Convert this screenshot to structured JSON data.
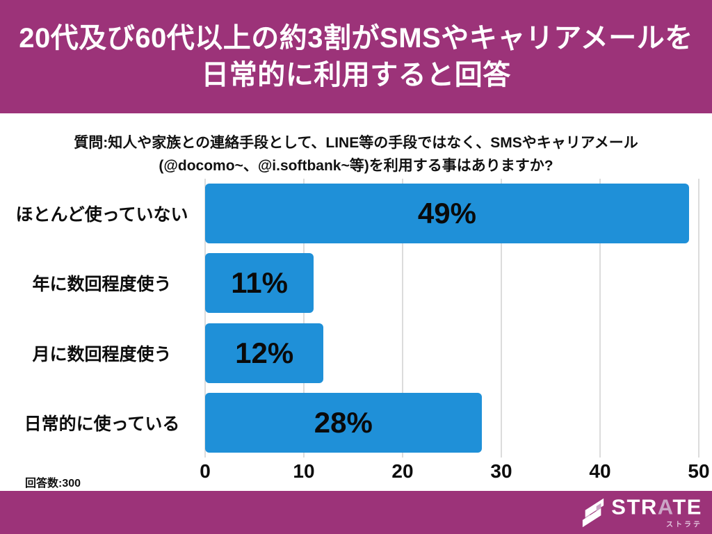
{
  "colors": {
    "magenta": "#9c3379",
    "bar_blue": "#1f90d8",
    "grid": "#dcdcdc",
    "lavender": "#cba6c6"
  },
  "header": {
    "line1": "20代及び60代以上の約3割がSMSやキャリアメールを",
    "line2": "日常的に利用すると回答"
  },
  "question": {
    "line1": "質問:知人や家族との連絡手段として、LINE等の手段ではなく、SMSやキャリアメール",
    "line2": "(@docomo~、@i.softbank~等)を利用する事はありますか?"
  },
  "chart_data": {
    "type": "bar",
    "orientation": "horizontal",
    "categories": [
      "ほとんど使っていない",
      "年に数回程度使う",
      "月に数回程度使う",
      "日常的に使っている"
    ],
    "values": [
      49,
      11,
      12,
      28
    ],
    "value_labels": [
      "49%",
      "11%",
      "12%",
      "28%"
    ],
    "x_ticks": [
      "0",
      "10",
      "20",
      "30",
      "40",
      "50"
    ],
    "xlim": [
      0,
      50
    ],
    "grid": true,
    "legend": "none",
    "bar_color": "#1f90d8"
  },
  "footnote": {
    "respondents": "回答数:300"
  },
  "footer": {
    "logo": {
      "icon": "strate-s-icon",
      "text_pre": "STR",
      "text_mid": "A",
      "text_post": "TE",
      "subtext": "ストラテ"
    }
  }
}
